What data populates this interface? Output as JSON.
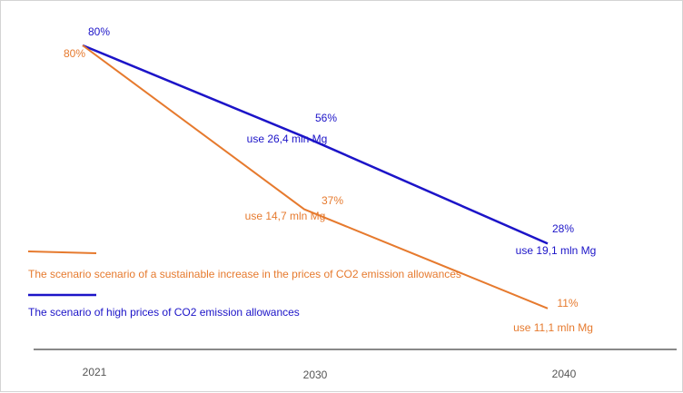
{
  "chart_data": {
    "type": "line",
    "categories": [
      "2021",
      "2030",
      "2040"
    ],
    "ylim": [
      0,
      100
    ],
    "grid": false,
    "legend_position": "left-middle",
    "series": [
      {
        "name": "The scenario of high prices of CO2 emission allowances",
        "color": "#1c14c8",
        "values": [
          80,
          56,
          28
        ],
        "value_labels": [
          "80%",
          "56%",
          "28%"
        ],
        "usage_labels": [
          "",
          "use 26,4 mln Mg",
          "use 19,1 mln Mg"
        ]
      },
      {
        "name": "The scenario scenario of a sustainable increase in the prices of CO2 emission allowances",
        "color": "#e67a2e",
        "values": [
          80,
          37,
          11
        ],
        "value_labels": [
          "80%",
          "37%",
          "11%"
        ],
        "usage_labels": [
          "",
          "use 14,7 mln Mg",
          "use 11,1 mln Mg"
        ]
      }
    ]
  }
}
